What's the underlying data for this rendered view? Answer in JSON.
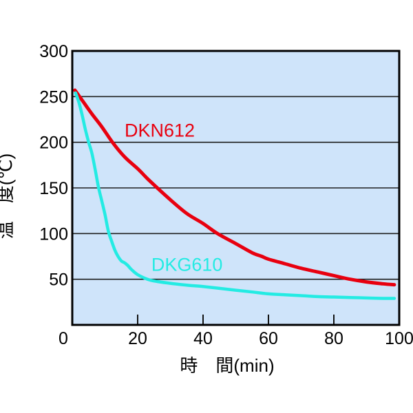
{
  "chart_data": {
    "type": "line",
    "title": "",
    "xlabel": "時　間(min)",
    "ylabel": "温　度(℃)",
    "xlim": [
      0,
      100
    ],
    "ylim": [
      0,
      300
    ],
    "x_ticks": [
      0,
      20,
      40,
      60,
      80,
      100
    ],
    "y_ticks": [
      50,
      100,
      150,
      200,
      250,
      300
    ],
    "grid": "horizontal",
    "colors": {
      "plot_background": "#cfe4fa",
      "gridline": "#1f1f1f",
      "border": "#000000",
      "text": "#000000"
    },
    "series": [
      {
        "name": "DKN612",
        "color": "#e8000f",
        "label_pos": {
          "x": 16.0,
          "y": 213
        },
        "points": [
          [
            0.8,
            257
          ],
          [
            3,
            246
          ],
          [
            6,
            231
          ],
          [
            9,
            217
          ],
          [
            12.3,
            200
          ],
          [
            16,
            184
          ],
          [
            20,
            171
          ],
          [
            23,
            160
          ],
          [
            26,
            150
          ],
          [
            30,
            137
          ],
          [
            35,
            122
          ],
          [
            40,
            111
          ],
          [
            44.4,
            100
          ],
          [
            50,
            89
          ],
          [
            55,
            79
          ],
          [
            58,
            75
          ],
          [
            60,
            72
          ],
          [
            65,
            67
          ],
          [
            70,
            62
          ],
          [
            75,
            58
          ],
          [
            80,
            54
          ],
          [
            85,
            50
          ],
          [
            90,
            47
          ],
          [
            95,
            45
          ],
          [
            98.5,
            44
          ]
        ]
      },
      {
        "name": "DKG610",
        "color": "#24ebe3",
        "label_pos": {
          "x": 24.2,
          "y": 66
        },
        "points": [
          [
            1,
            254
          ],
          [
            2,
            244
          ],
          [
            3,
            230
          ],
          [
            4,
            214
          ],
          [
            5,
            200
          ],
          [
            6,
            188
          ],
          [
            7,
            170
          ],
          [
            8,
            151
          ],
          [
            9,
            136
          ],
          [
            10,
            121
          ],
          [
            11,
            103
          ],
          [
            12,
            92
          ],
          [
            13,
            82
          ],
          [
            14,
            75
          ],
          [
            15,
            70
          ],
          [
            16,
            68
          ],
          [
            17,
            65
          ],
          [
            18,
            61
          ],
          [
            20,
            55
          ],
          [
            23,
            50
          ],
          [
            26,
            47.5
          ],
          [
            30,
            45.5
          ],
          [
            35,
            43.5
          ],
          [
            40,
            42
          ],
          [
            45,
            40
          ],
          [
            50,
            38
          ],
          [
            55,
            36
          ],
          [
            60,
            34
          ],
          [
            65,
            33
          ],
          [
            70,
            32
          ],
          [
            75,
            31
          ],
          [
            80,
            30.5
          ],
          [
            85,
            30
          ],
          [
            90,
            29.5
          ],
          [
            95,
            29
          ],
          [
            98.5,
            29
          ]
        ]
      }
    ]
  }
}
